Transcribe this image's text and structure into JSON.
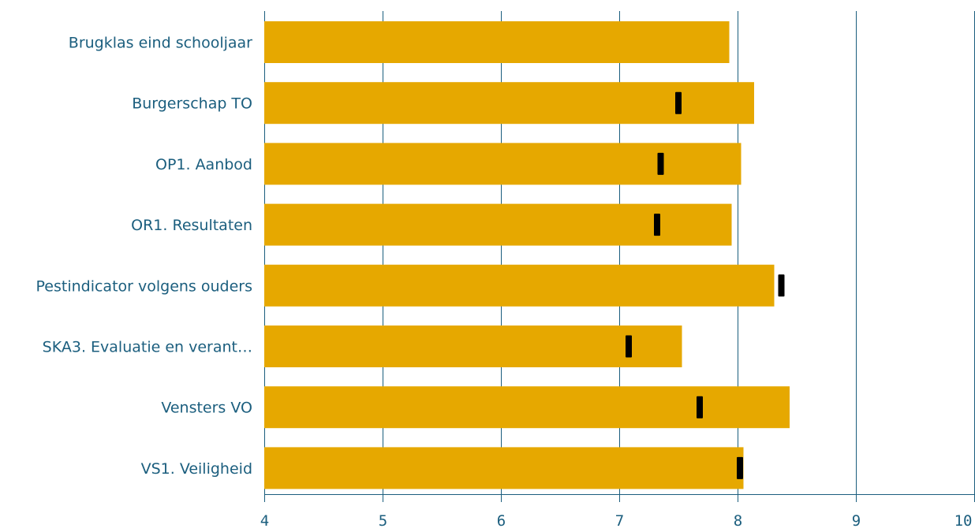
{
  "colors": {
    "bar": "#E6A800",
    "marker": "#000000",
    "axis": "#1B5E7E",
    "label": "#1B5E7E",
    "background": "#ffffff"
  },
  "chart_data": {
    "type": "bar",
    "orientation": "horizontal",
    "title": "",
    "xlabel": "",
    "ylabel": "",
    "xlim": [
      4,
      10
    ],
    "xticks": [
      4,
      5,
      6,
      7,
      8,
      9,
      10
    ],
    "grid": true,
    "legend": "none",
    "categories": [
      "Brugklas eind schooljaar",
      "Burgerschap TO",
      "OP1. Aanbod",
      "OR1. Resultaten",
      "Pestindicator volgens ouders",
      "SKA3.  Evaluatie en verant…",
      "Vensters VO",
      "VS1. Veiligheid"
    ],
    "series": [
      {
        "values": [
          7.93,
          8.14,
          8.03,
          7.95,
          8.31,
          7.53,
          8.44,
          8.05
        ]
      },
      {
        "kind": "marker",
        "values": [
          null,
          7.5,
          7.35,
          7.32,
          8.37,
          7.08,
          7.68,
          8.02
        ]
      }
    ]
  }
}
